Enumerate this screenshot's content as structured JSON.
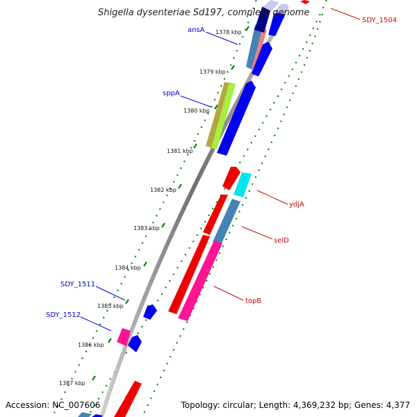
{
  "title": "Shigella dysenteriae Sd197, complete genome",
  "accession": "Accession: NC_007606",
  "topology": "Topology: circular; Length: 4,369,232 bp; Genes: 4,377",
  "kbp_ticks": [
    "1378 kbp",
    "1379 kbp",
    "1380 kbp",
    "1381 kbp",
    "1382 kbp",
    "1383 kbp",
    "1384 kbp",
    "1385 kbp",
    "1386 kbp",
    "1387 kbp"
  ],
  "labels": {
    "ansA": "ansA",
    "sppA": "sppA",
    "SDY_1511": "SDY_1511",
    "SDY_1512": "SDY_1512",
    "SDY_1504": "SDY_1504",
    "ydjA": "ydjA",
    "selD": "selD",
    "topB": "topB"
  },
  "colors": {
    "backbone": "#8c8c8c",
    "tick_dots": "#008000",
    "label_blue": "#0000cc",
    "label_red": "#cc0000",
    "gene_blue": "#0000ee",
    "gene_red": "#ee0000",
    "gene_pink": "#ff1493",
    "gene_cyan": "#00e5ee",
    "gene_steel": "#4682b4",
    "gene_olive": "#b5a642",
    "gene_lime": "#a6f040",
    "gene_lavender": "#c8c8f0",
    "gene_navy": "#000080",
    "gene_salmon": "#f08080"
  }
}
